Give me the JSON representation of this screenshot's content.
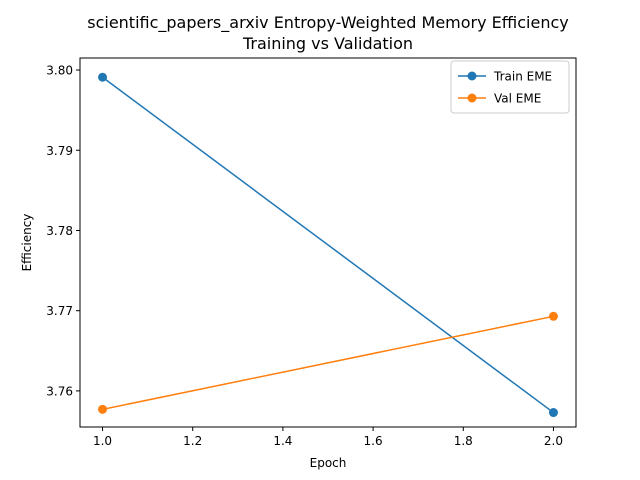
{
  "chart_data": {
    "type": "line",
    "title_line1": "scientific_papers_arxiv Entropy-Weighted Memory Efficiency",
    "title_line2": "Training vs Validation",
    "xlabel": "Epoch",
    "ylabel": "Efficiency",
    "xlim": [
      0.95,
      2.05
    ],
    "ylim": [
      3.7555,
      3.8015
    ],
    "xticks": [
      1.0,
      1.2,
      1.4,
      1.6,
      1.8,
      2.0
    ],
    "xtick_labels": [
      "1.0",
      "1.2",
      "1.4",
      "1.6",
      "1.8",
      "2.0"
    ],
    "yticks": [
      3.76,
      3.77,
      3.78,
      3.79,
      3.8
    ],
    "ytick_labels": [
      "3.76",
      "3.77",
      "3.78",
      "3.79",
      "3.80"
    ],
    "grid": false,
    "legend_position": "top-right",
    "series": [
      {
        "name": "Train EME",
        "color": "#1f77b4",
        "x": [
          1.0,
          2.0
        ],
        "y": [
          3.7991,
          3.7573
        ]
      },
      {
        "name": "Val EME",
        "color": "#ff7f0e",
        "x": [
          1.0,
          2.0
        ],
        "y": [
          3.7577,
          3.7693
        ]
      }
    ]
  }
}
